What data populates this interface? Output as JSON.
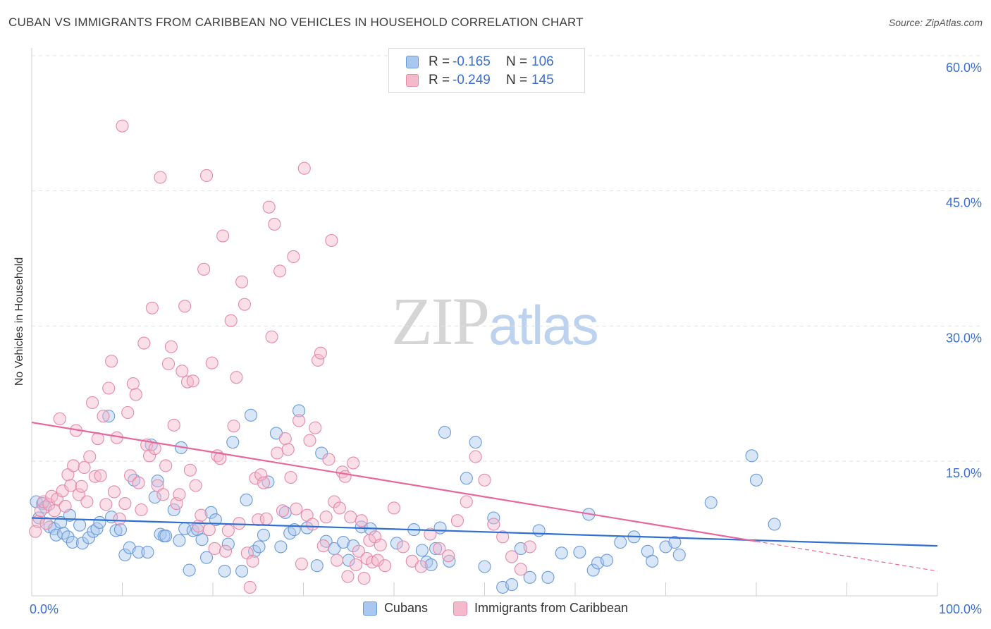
{
  "title": "CUBAN VS IMMIGRANTS FROM CARIBBEAN NO VEHICLES IN HOUSEHOLD CORRELATION CHART",
  "source": "Source: ZipAtlas.com",
  "watermark": {
    "zip": "ZIP",
    "atlas": "atlas"
  },
  "legend": {
    "rows": [
      {
        "r_label": "R =",
        "r_value": "-0.165",
        "n_label": "N =",
        "n_value": "106",
        "color": "#a9c8f0",
        "stroke": "#6a9bd8"
      },
      {
        "r_label": "R =",
        "r_value": "-0.249",
        "n_label": "N =",
        "n_value": "145",
        "color": "#f5b9cc",
        "stroke": "#e58aa8"
      }
    ],
    "bottom": [
      {
        "label": "Cubans",
        "color": "#a9c8f0",
        "stroke": "#6a9bd8"
      },
      {
        "label": "Immigrants from Caribbean",
        "color": "#f5b9cc",
        "stroke": "#e58aa8"
      }
    ]
  },
  "chart_data": {
    "type": "scatter",
    "title": "CUBAN VS IMMIGRANTS FROM CARIBBEAN NO VEHICLES IN HOUSEHOLD CORRELATION CHART",
    "xlabel": "",
    "ylabel": "No Vehicles in Household",
    "xlim": [
      0,
      100
    ],
    "ylim": [
      0,
      63
    ],
    "x_ticks": [
      "0.0%",
      "100.0%"
    ],
    "y_ticks": [
      {
        "value": 15,
        "label": "15.0%"
      },
      {
        "value": 30,
        "label": "30.0%"
      },
      {
        "value": 45,
        "label": "45.0%"
      },
      {
        "value": 60,
        "label": "60.0%"
      }
    ],
    "grid": true,
    "legend_position": "top-center",
    "series": [
      {
        "name": "Cubans",
        "color": "#6a9bd8",
        "fill": "#a9c8f0",
        "trend": {
          "x": [
            0,
            100
          ],
          "y": [
            8.7,
            5.6
          ],
          "dashed_from": null
        },
        "points": [
          [
            0.5,
            10.5
          ],
          [
            0.8,
            8.7
          ],
          [
            1.2,
            10.3
          ],
          [
            1.5,
            9.9
          ],
          [
            2.0,
            7.7
          ],
          [
            2.5,
            7.5
          ],
          [
            2.7,
            6.8
          ],
          [
            3.2,
            8.2
          ],
          [
            3.5,
            7.0
          ],
          [
            4.0,
            6.6
          ],
          [
            4.2,
            9.0
          ],
          [
            4.5,
            6.0
          ],
          [
            5.3,
            7.9
          ],
          [
            5.6,
            5.9
          ],
          [
            6.3,
            6.5
          ],
          [
            6.8,
            7.2
          ],
          [
            7.2,
            7.5
          ],
          [
            7.5,
            8.2
          ],
          [
            8.5,
            20.0
          ],
          [
            8.8,
            8.8
          ],
          [
            9.3,
            7.3
          ],
          [
            9.8,
            7.4
          ],
          [
            10.3,
            4.6
          ],
          [
            10.8,
            5.4
          ],
          [
            11.3,
            12.9
          ],
          [
            11.8,
            4.9
          ],
          [
            12.8,
            4.9
          ],
          [
            13.2,
            16.8
          ],
          [
            13.6,
            11.0
          ],
          [
            13.9,
            12.8
          ],
          [
            14.2,
            6.9
          ],
          [
            14.6,
            6.7
          ],
          [
            14.8,
            6.7
          ],
          [
            15.7,
            9.6
          ],
          [
            16.3,
            6.2
          ],
          [
            16.5,
            16.5
          ],
          [
            16.9,
            7.5
          ],
          [
            17.4,
            2.9
          ],
          [
            17.8,
            7.3
          ],
          [
            18.3,
            7.4
          ],
          [
            18.8,
            6.3
          ],
          [
            19.3,
            4.3
          ],
          [
            19.8,
            9.3
          ],
          [
            20.3,
            8.5
          ],
          [
            21.3,
            2.8
          ],
          [
            21.7,
            5.8
          ],
          [
            22.2,
            17.1
          ],
          [
            23.2,
            2.8
          ],
          [
            23.7,
            10.7
          ],
          [
            24.2,
            20.1
          ],
          [
            24.6,
            5.0
          ],
          [
            25.1,
            5.5
          ],
          [
            25.6,
            6.8
          ],
          [
            26.1,
            12.7
          ],
          [
            27.0,
            18.1
          ],
          [
            27.5,
            5.5
          ],
          [
            28.0,
            9.3
          ],
          [
            28.5,
            7.0
          ],
          [
            29.0,
            7.4
          ],
          [
            29.5,
            20.6
          ],
          [
            30.4,
            7.6
          ],
          [
            31.5,
            3.4
          ],
          [
            32.0,
            15.9
          ],
          [
            32.5,
            6.1
          ],
          [
            33.4,
            5.3
          ],
          [
            34.4,
            6.0
          ],
          [
            35.0,
            4.0
          ],
          [
            35.5,
            5.6
          ],
          [
            36.4,
            7.7
          ],
          [
            37.4,
            7.5
          ],
          [
            40.3,
            5.9
          ],
          [
            42.2,
            7.4
          ],
          [
            43.1,
            5.1
          ],
          [
            43.6,
            3.8
          ],
          [
            44.1,
            3.5
          ],
          [
            44.6,
            5.3
          ],
          [
            45.1,
            7.6
          ],
          [
            45.6,
            18.2
          ],
          [
            46.1,
            3.9
          ],
          [
            48.0,
            13.1
          ],
          [
            49.0,
            17.1
          ],
          [
            50.0,
            3.3
          ],
          [
            51.0,
            8.7
          ],
          [
            52.0,
            1.0
          ],
          [
            53.0,
            1.3
          ],
          [
            54.0,
            5.3
          ],
          [
            55.0,
            2.1
          ],
          [
            56.0,
            7.3
          ],
          [
            57.0,
            2.1
          ],
          [
            58.5,
            4.8
          ],
          [
            60.5,
            4.9
          ],
          [
            61.5,
            9.1
          ],
          [
            62.0,
            2.9
          ],
          [
            62.5,
            3.7
          ],
          [
            63.5,
            4.0
          ],
          [
            65.0,
            6.0
          ],
          [
            66.5,
            6.6
          ],
          [
            68.0,
            5.0
          ],
          [
            68.5,
            3.9
          ],
          [
            70.0,
            5.5
          ],
          [
            71.0,
            6.0
          ],
          [
            71.5,
            4.6
          ],
          [
            75.0,
            10.4
          ],
          [
            79.5,
            15.6
          ],
          [
            80.0,
            12.9
          ],
          [
            82.0,
            8.0
          ]
        ]
      },
      {
        "name": "Immigrants from Caribbean",
        "color": "#e58aa8",
        "fill": "#f5b9cc",
        "trend": {
          "x": [
            0,
            100
          ],
          "y": [
            19.3,
            2.8
          ],
          "dashed_from": 80
        },
        "points": [
          [
            0.4,
            7.2
          ],
          [
            0.7,
            8.3
          ],
          [
            1.0,
            9.5
          ],
          [
            1.3,
            10.5
          ],
          [
            1.6,
            8.1
          ],
          [
            1.9,
            10.2
          ],
          [
            2.2,
            11.1
          ],
          [
            2.5,
            9.5
          ],
          [
            2.8,
            10.8
          ],
          [
            3.1,
            19.7
          ],
          [
            3.4,
            11.7
          ],
          [
            3.7,
            10.0
          ],
          [
            4.0,
            13.5
          ],
          [
            4.3,
            12.3
          ],
          [
            4.6,
            14.5
          ],
          [
            4.9,
            18.4
          ],
          [
            5.2,
            11.3
          ],
          [
            5.5,
            12.2
          ],
          [
            5.8,
            14.3
          ],
          [
            6.1,
            10.5
          ],
          [
            6.4,
            15.5
          ],
          [
            6.7,
            21.5
          ],
          [
            7.0,
            13.3
          ],
          [
            7.3,
            17.5
          ],
          [
            7.6,
            13.4
          ],
          [
            7.9,
            20.0
          ],
          [
            8.2,
            10.2
          ],
          [
            8.5,
            23.1
          ],
          [
            8.8,
            26.1
          ],
          [
            9.1,
            11.6
          ],
          [
            9.4,
            17.6
          ],
          [
            9.7,
            8.6
          ],
          [
            10.0,
            52.2
          ],
          [
            10.3,
            10.3
          ],
          [
            10.6,
            20.4
          ],
          [
            10.9,
            13.4
          ],
          [
            11.2,
            23.6
          ],
          [
            11.5,
            22.4
          ],
          [
            11.8,
            12.6
          ],
          [
            12.1,
            9.6
          ],
          [
            12.4,
            28.1
          ],
          [
            12.7,
            16.8
          ],
          [
            13.0,
            15.6
          ],
          [
            13.3,
            32.0
          ],
          [
            13.6,
            16.4
          ],
          [
            13.9,
            12.3
          ],
          [
            14.2,
            46.5
          ],
          [
            14.5,
            11.3
          ],
          [
            14.8,
            14.5
          ],
          [
            15.1,
            25.8
          ],
          [
            15.4,
            27.7
          ],
          [
            15.7,
            19.0
          ],
          [
            16.0,
            10.3
          ],
          [
            16.3,
            11.3
          ],
          [
            16.6,
            25.0
          ],
          [
            16.9,
            32.2
          ],
          [
            17.2,
            23.8
          ],
          [
            17.5,
            14.0
          ],
          [
            17.8,
            23.9
          ],
          [
            18.1,
            12.3
          ],
          [
            18.4,
            7.8
          ],
          [
            18.7,
            9.0
          ],
          [
            19.0,
            36.3
          ],
          [
            19.3,
            46.7
          ],
          [
            19.6,
            7.4
          ],
          [
            19.9,
            25.9
          ],
          [
            20.2,
            5.3
          ],
          [
            20.5,
            15.6
          ],
          [
            20.8,
            15.3
          ],
          [
            21.1,
            40.0
          ],
          [
            21.4,
            5.0
          ],
          [
            21.7,
            7.3
          ],
          [
            22.0,
            30.6
          ],
          [
            22.3,
            18.9
          ],
          [
            22.6,
            24.3
          ],
          [
            22.9,
            8.1
          ],
          [
            23.2,
            34.9
          ],
          [
            23.5,
            32.4
          ],
          [
            23.8,
            4.8
          ],
          [
            24.1,
            1.0
          ],
          [
            24.4,
            3.9
          ],
          [
            24.7,
            13.1
          ],
          [
            25.0,
            8.5
          ],
          [
            25.3,
            13.5
          ],
          [
            25.6,
            12.6
          ],
          [
            25.9,
            8.6
          ],
          [
            26.2,
            43.2
          ],
          [
            26.5,
            28.8
          ],
          [
            26.8,
            41.3
          ],
          [
            27.1,
            15.9
          ],
          [
            27.4,
            36.1
          ],
          [
            27.7,
            9.5
          ],
          [
            28.0,
            17.5
          ],
          [
            28.3,
            16.3
          ],
          [
            28.6,
            13.2
          ],
          [
            28.9,
            37.7
          ],
          [
            29.2,
            9.7
          ],
          [
            29.5,
            19.5
          ],
          [
            29.8,
            3.6
          ],
          [
            30.1,
            47.5
          ],
          [
            30.4,
            9.0
          ],
          [
            30.7,
            17.3
          ],
          [
            31.0,
            8.0
          ],
          [
            31.3,
            18.7
          ],
          [
            31.6,
            26.2
          ],
          [
            31.9,
            27.0
          ],
          [
            32.2,
            5.6
          ],
          [
            32.5,
            8.8
          ],
          [
            32.8,
            15.2
          ],
          [
            33.1,
            39.5
          ],
          [
            33.4,
            10.5
          ],
          [
            33.7,
            4.0
          ],
          [
            34.0,
            9.8
          ],
          [
            34.3,
            13.8
          ],
          [
            34.6,
            13.3
          ],
          [
            34.9,
            2.2
          ],
          [
            35.2,
            8.8
          ],
          [
            35.5,
            14.8
          ],
          [
            35.8,
            3.5
          ],
          [
            36.1,
            5.0
          ],
          [
            36.4,
            8.4
          ],
          [
            36.7,
            2.0
          ],
          [
            37.0,
            4.2
          ],
          [
            37.3,
            6.2
          ],
          [
            37.6,
            3.8
          ],
          [
            37.9,
            6.6
          ],
          [
            38.2,
            4.0
          ],
          [
            38.5,
            5.7
          ],
          [
            39.0,
            3.4
          ],
          [
            40.0,
            9.8
          ],
          [
            41.0,
            5.5
          ],
          [
            42.0,
            3.9
          ],
          [
            43.0,
            3.3
          ],
          [
            44.0,
            6.9
          ],
          [
            45.0,
            5.3
          ],
          [
            46.0,
            4.5
          ],
          [
            47.0,
            8.4
          ],
          [
            48.0,
            10.5
          ],
          [
            49.0,
            15.5
          ],
          [
            50.0,
            12.9
          ],
          [
            51.0,
            8.0
          ],
          [
            52.0,
            6.6
          ],
          [
            53.0,
            4.4
          ],
          [
            54.0,
            3.0
          ],
          [
            55.0,
            5.5
          ]
        ]
      }
    ]
  }
}
